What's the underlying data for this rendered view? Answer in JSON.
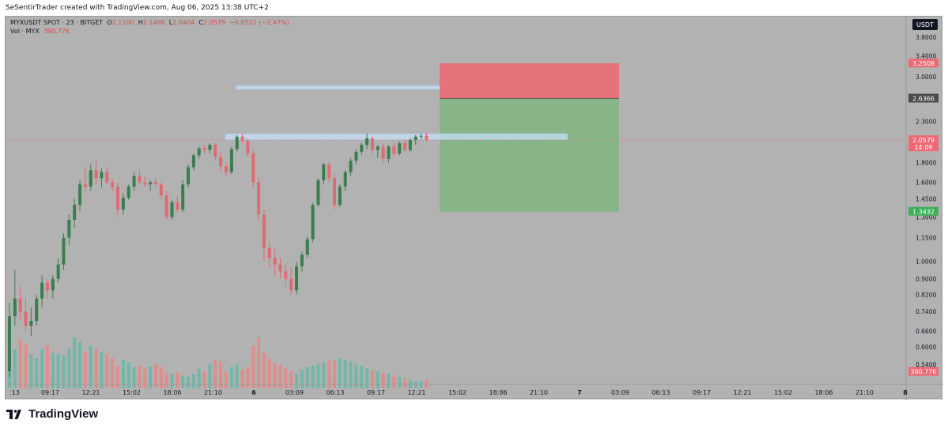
{
  "header": {
    "text": "SeSentirTrader created with TradingView.com, Aug 06, 2025 13:38 UTC+2"
  },
  "legend": {
    "symbol": "MYXUSDT SPOT · 23 · BITGET",
    "open_label": "O",
    "open": "2.1100",
    "high_label": "H",
    "high": "2.1466",
    "low_label": "L",
    "low": "2.0404",
    "close_label": "C",
    "close": "2.0579",
    "change": "−0.0521 (−2.47%)",
    "vol_label": "Vol · MYX",
    "vol": "390.77K"
  },
  "currency_badge": "USDT",
  "footer": {
    "brand": "TradingView"
  },
  "colors": {
    "up": "#3a7d4f",
    "down": "#e06a72",
    "vol_up": "#6fb7a8",
    "vol_down": "#e58a8a",
    "stop_zone": "#eb6a74",
    "target_zone": "#83b583",
    "box": "#c9e0f5",
    "box_border": "#9fc1e6"
  },
  "chart_data": {
    "type": "candlestick",
    "scale": "log",
    "y_ticks": [
      "3.8000",
      "3.4000",
      "3.0000",
      "2.3000",
      "1.8000",
      "1.6000",
      "1.4500",
      "1.3000",
      "1.1500",
      "1.0000",
      "0.9000",
      "0.8200",
      "0.7400",
      "0.6600",
      "0.6000",
      "0.5400"
    ],
    "x_ticks": [
      ":13",
      "09:17",
      "12:21",
      "15:02",
      "18:06",
      "21:10",
      "6",
      "03:09",
      "06:13",
      "09:17",
      "12:21",
      "15:02",
      "18:06",
      "21:10",
      "7",
      "03:09",
      "06:13",
      "09:17",
      "12:21",
      "15:02",
      "18:06",
      "21:10",
      "8"
    ],
    "price_labels": [
      {
        "value": "3.2508",
        "kind": "stop"
      },
      {
        "value": "2.6366",
        "kind": "entry"
      },
      {
        "value": "2.0579",
        "kind": "last",
        "sub": "14:09"
      },
      {
        "value": "1.3432",
        "kind": "target"
      },
      {
        "value": "390.77K",
        "kind": "volume"
      }
    ],
    "position": {
      "stop": 3.2508,
      "entry": 2.6366,
      "target": 1.3432
    },
    "zones": [
      {
        "low": 2.78,
        "high": 2.85
      },
      {
        "low": 2.06,
        "high": 2.14
      }
    ],
    "last_price": 2.0579,
    "candles": [
      [
        0.52,
        0.78,
        0.5,
        0.72
      ],
      [
        0.72,
        0.95,
        0.68,
        0.8
      ],
      [
        0.8,
        0.86,
        0.7,
        0.74
      ],
      [
        0.74,
        0.8,
        0.66,
        0.68
      ],
      [
        0.68,
        0.76,
        0.64,
        0.7
      ],
      [
        0.7,
        0.82,
        0.68,
        0.8
      ],
      [
        0.8,
        0.92,
        0.76,
        0.88
      ],
      [
        0.88,
        0.9,
        0.8,
        0.84
      ],
      [
        0.84,
        0.92,
        0.8,
        0.9
      ],
      [
        0.9,
        1.02,
        0.88,
        0.98
      ],
      [
        0.98,
        1.18,
        0.95,
        1.15
      ],
      [
        1.15,
        1.32,
        1.1,
        1.28
      ],
      [
        1.28,
        1.45,
        1.22,
        1.4
      ],
      [
        1.4,
        1.62,
        1.35,
        1.58
      ],
      [
        1.58,
        1.75,
        1.5,
        1.56
      ],
      [
        1.56,
        1.78,
        1.52,
        1.72
      ],
      [
        1.72,
        1.82,
        1.58,
        1.64
      ],
      [
        1.64,
        1.74,
        1.55,
        1.7
      ],
      [
        1.7,
        1.75,
        1.58,
        1.6
      ],
      [
        1.6,
        1.64,
        1.52,
        1.56
      ],
      [
        1.56,
        1.6,
        1.3,
        1.36
      ],
      [
        1.36,
        1.5,
        1.32,
        1.46
      ],
      [
        1.46,
        1.58,
        1.44,
        1.56
      ],
      [
        1.56,
        1.7,
        1.52,
        1.66
      ],
      [
        1.66,
        1.72,
        1.58,
        1.6
      ],
      [
        1.6,
        1.66,
        1.56,
        1.58
      ],
      [
        1.58,
        1.62,
        1.52,
        1.6
      ],
      [
        1.6,
        1.64,
        1.55,
        1.58
      ],
      [
        1.58,
        1.6,
        1.45,
        1.48
      ],
      [
        1.48,
        1.52,
        1.28,
        1.3
      ],
      [
        1.3,
        1.44,
        1.28,
        1.42
      ],
      [
        1.42,
        1.48,
        1.34,
        1.36
      ],
      [
        1.36,
        1.62,
        1.34,
        1.58
      ],
      [
        1.58,
        1.78,
        1.55,
        1.75
      ],
      [
        1.75,
        1.9,
        1.72,
        1.88
      ],
      [
        1.88,
        1.98,
        1.84,
        1.96
      ],
      [
        1.96,
        2.0,
        1.9,
        1.94
      ],
      [
        1.94,
        2.02,
        1.9,
        2.0
      ],
      [
        2.0,
        2.02,
        1.82,
        1.86
      ],
      [
        1.86,
        1.92,
        1.7,
        1.76
      ],
      [
        1.76,
        1.8,
        1.66,
        1.7
      ],
      [
        1.7,
        1.98,
        1.68,
        1.95
      ],
      [
        1.95,
        2.12,
        1.92,
        2.1
      ],
      [
        2.1,
        2.14,
        2.02,
        2.05
      ],
      [
        2.05,
        2.08,
        1.86,
        1.9
      ],
      [
        1.9,
        1.94,
        1.55,
        1.6
      ],
      [
        1.6,
        1.65,
        1.28,
        1.32
      ],
      [
        1.32,
        1.36,
        1.0,
        1.08
      ],
      [
        1.08,
        1.12,
        0.96,
        1.02
      ],
      [
        1.02,
        1.08,
        0.92,
        0.98
      ],
      [
        0.98,
        1.02,
        0.9,
        0.94
      ],
      [
        0.94,
        0.98,
        0.86,
        0.9
      ],
      [
        0.9,
        0.96,
        0.82,
        0.84
      ],
      [
        0.84,
        1.0,
        0.82,
        0.97
      ],
      [
        0.97,
        1.06,
        0.94,
        1.04
      ],
      [
        1.04,
        1.16,
        1.02,
        1.14
      ],
      [
        1.14,
        1.42,
        1.12,
        1.4
      ],
      [
        1.4,
        1.64,
        1.38,
        1.62
      ],
      [
        1.62,
        1.8,
        1.58,
        1.78
      ],
      [
        1.78,
        1.8,
        1.6,
        1.64
      ],
      [
        1.64,
        1.68,
        1.36,
        1.4
      ],
      [
        1.4,
        1.58,
        1.38,
        1.56
      ],
      [
        1.56,
        1.72,
        1.52,
        1.7
      ],
      [
        1.7,
        1.85,
        1.66,
        1.82
      ],
      [
        1.82,
        1.95,
        1.78,
        1.92
      ],
      [
        1.92,
        2.02,
        1.88,
        2.0
      ],
      [
        2.0,
        2.14,
        1.95,
        2.08
      ],
      [
        2.08,
        2.1,
        1.9,
        1.94
      ],
      [
        1.94,
        2.0,
        1.85,
        1.98
      ],
      [
        1.98,
        2.02,
        1.8,
        1.84
      ],
      [
        1.84,
        2.0,
        1.8,
        1.98
      ],
      [
        1.98,
        2.02,
        1.86,
        1.9
      ],
      [
        1.9,
        2.04,
        1.88,
        2.02
      ],
      [
        2.02,
        2.06,
        1.92,
        1.94
      ],
      [
        1.94,
        2.08,
        1.92,
        2.06
      ],
      [
        2.06,
        2.12,
        2.0,
        2.1
      ],
      [
        2.1,
        2.14,
        2.06,
        2.11
      ],
      [
        2.11,
        2.15,
        2.04,
        2.06
      ]
    ],
    "volumes": [
      0.75,
      0.55,
      0.68,
      0.62,
      0.48,
      0.42,
      0.55,
      0.6,
      0.5,
      0.48,
      0.46,
      0.56,
      0.72,
      0.65,
      0.52,
      0.6,
      0.55,
      0.5,
      0.48,
      0.42,
      0.32,
      0.4,
      0.36,
      0.3,
      0.32,
      0.28,
      0.3,
      0.34,
      0.3,
      0.22,
      0.2,
      0.22,
      0.18,
      0.16,
      0.2,
      0.28,
      0.24,
      0.34,
      0.4,
      0.38,
      0.24,
      0.3,
      0.34,
      0.26,
      0.3,
      0.6,
      0.72,
      0.5,
      0.42,
      0.36,
      0.32,
      0.28,
      0.24,
      0.2,
      0.26,
      0.3,
      0.32,
      0.34,
      0.36,
      0.38,
      0.4,
      0.42,
      0.4,
      0.38,
      0.34,
      0.32,
      0.28,
      0.26,
      0.24,
      0.22,
      0.2,
      0.18,
      0.16,
      0.14,
      0.12,
      0.1,
      0.1,
      0.12
    ]
  }
}
